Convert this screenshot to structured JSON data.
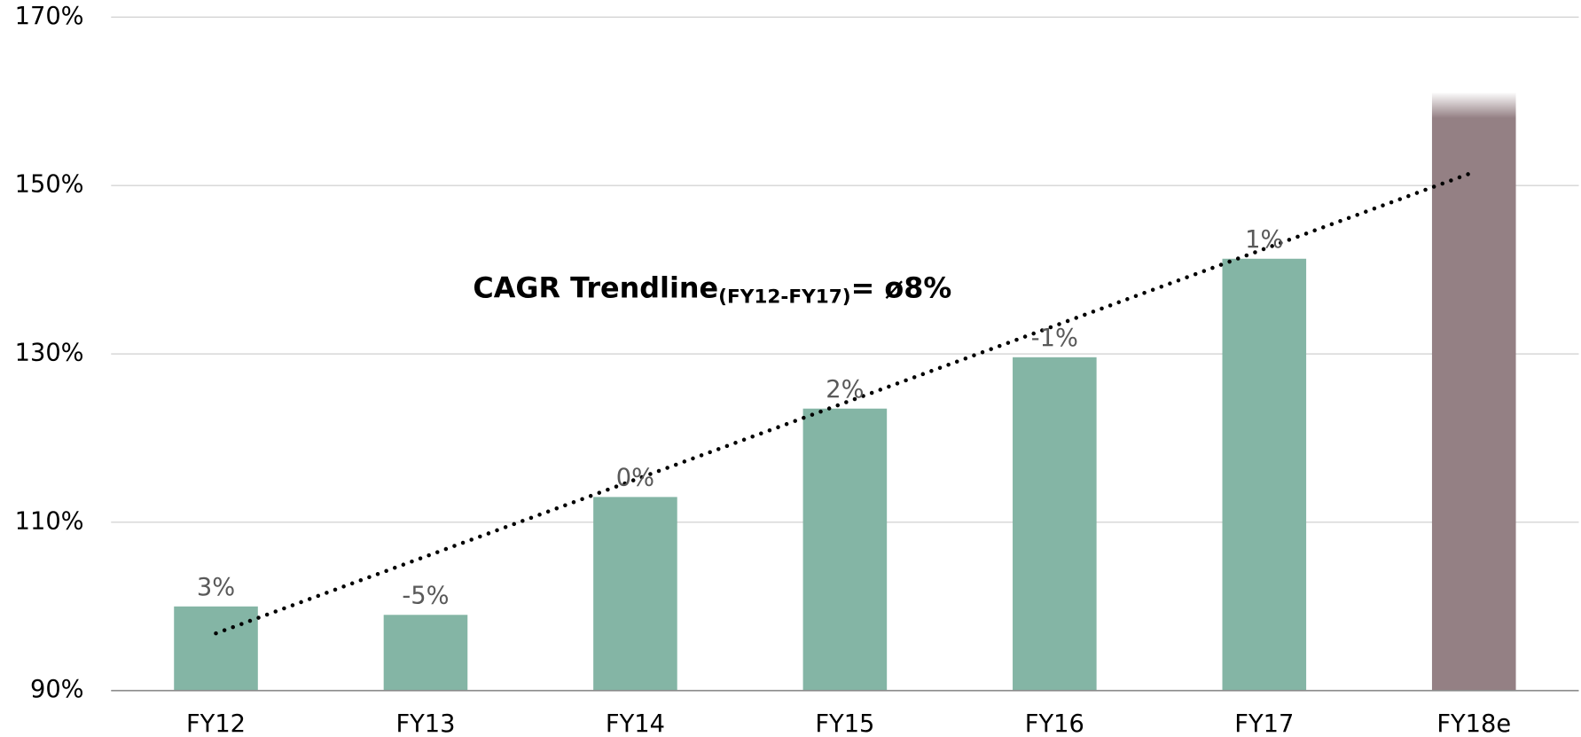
{
  "chart_data": {
    "type": "bar",
    "categories": [
      "FY12",
      "FY13",
      "FY14",
      "FY15",
      "FY16",
      "FY17",
      "FY18e"
    ],
    "values": [
      100,
      99,
      113,
      123.5,
      129.6,
      141.3,
      161
    ],
    "colors": [
      "#84b5a5",
      "#84b5a5",
      "#84b5a5",
      "#84b5a5",
      "#84b5a5",
      "#84b5a5",
      "#948084"
    ],
    "bar_annotations": [
      "3%",
      "-5%",
      "0%",
      "2%",
      "-1%",
      "1%",
      null
    ],
    "ylim": [
      90,
      170
    ],
    "yticks": [
      {
        "value": 90,
        "label": "90%"
      },
      {
        "value": 110,
        "label": "110%"
      },
      {
        "value": 130,
        "label": "130%"
      },
      {
        "value": 150,
        "label": "150%"
      },
      {
        "value": 170,
        "label": "170%"
      }
    ],
    "grid": true,
    "trendline": {
      "from": 96.8,
      "to": 151.6
    },
    "annotation": {
      "text": "CAGR Trendline",
      "subscript": "(FY12-FY17)",
      "suffix": "= ø8%"
    }
  }
}
